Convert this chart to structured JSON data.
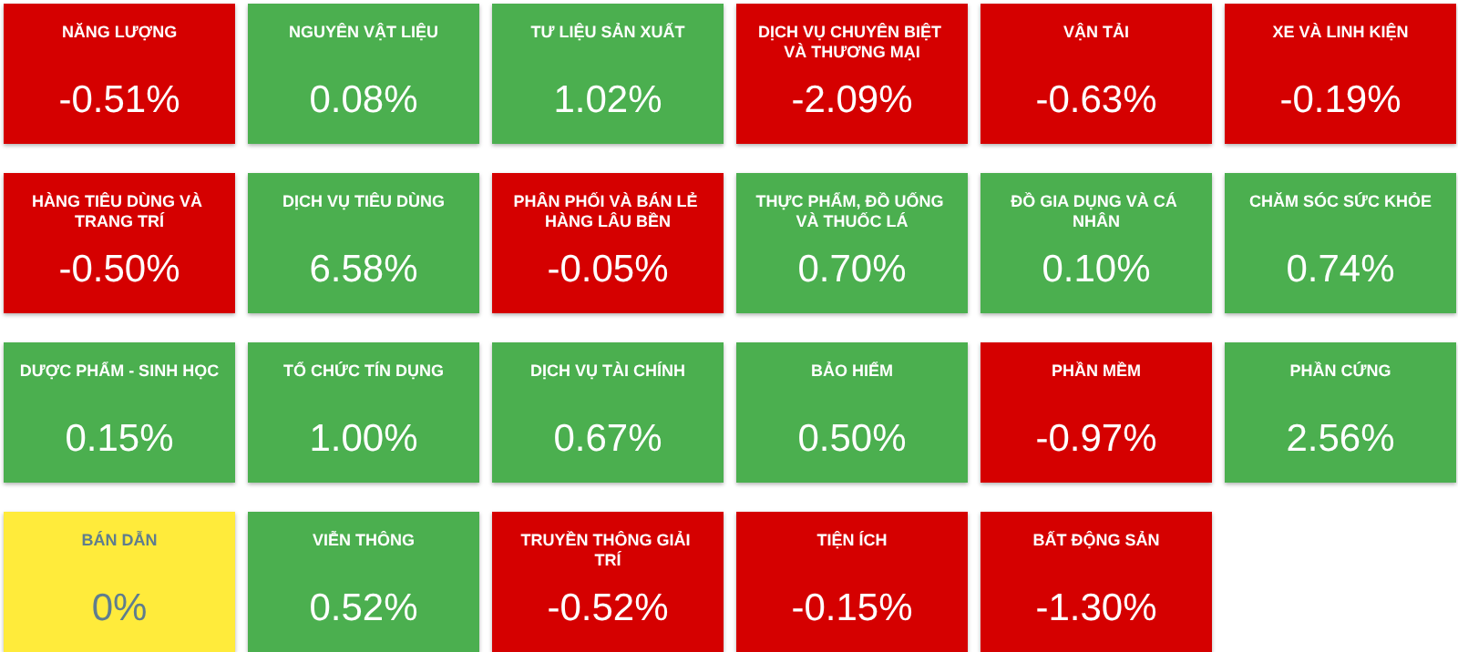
{
  "chart_data": {
    "type": "other",
    "categories": [
      "NĂNG LƯỢNG",
      "NGUYÊN VẬT LIỆU",
      "TƯ LIỆU SẢN XUẤT",
      "DỊCH VỤ CHUYÊN BIỆT VÀ THƯƠNG MẠI",
      "VẬN TẢI",
      "XE VÀ LINH KIỆN",
      "HÀNG TIÊU DÙNG VÀ TRANG TRÍ",
      "DỊCH VỤ TIÊU DÙNG",
      "PHÂN PHỐI VÀ BÁN LẺ HÀNG LÂU BỀN",
      "THỰC PHẨM, ĐỒ UỐNG VÀ THUỐC LÁ",
      "ĐỒ GIA DỤNG VÀ CÁ NHÂN",
      "CHĂM SÓC SỨC KHỎE",
      "DƯỢC PHẨM - SINH HỌC",
      "TỔ CHỨC TÍN DỤNG",
      "DỊCH VỤ TÀI CHÍNH",
      "BẢO HIỂM",
      "PHẦN MỀM",
      "PHẦN CỨNG",
      "BÁN DẪN",
      "VIỄN THÔNG",
      "TRUYỀN THÔNG GIẢI TRÍ",
      "TIỆN ÍCH",
      "BẤT ĐỘNG SẢN"
    ],
    "values": [
      -0.51,
      0.08,
      1.02,
      -2.09,
      -0.63,
      -0.19,
      -0.5,
      6.58,
      -0.05,
      0.7,
      0.1,
      0.74,
      0.15,
      1.0,
      0.67,
      0.5,
      -0.97,
      2.56,
      0,
      0.52,
      -0.52,
      -0.15,
      -1.3
    ],
    "value_labels": [
      "-0.51%",
      "0.08%",
      "1.02%",
      "-2.09%",
      "-0.63%",
      "-0.19%",
      "-0.50%",
      "6.58%",
      "-0.05%",
      "0.70%",
      "0.10%",
      "0.74%",
      "0.15%",
      "1.00%",
      "0.67%",
      "0.50%",
      "-0.97%",
      "2.56%",
      "0%",
      "0.52%",
      "-0.52%",
      "-0.15%",
      "-1.30%"
    ],
    "colors": [
      "#d50000",
      "#4caf50",
      "#4caf50",
      "#d50000",
      "#d50000",
      "#d50000",
      "#d50000",
      "#4caf50",
      "#d50000",
      "#4caf50",
      "#4caf50",
      "#4caf50",
      "#4caf50",
      "#4caf50",
      "#4caf50",
      "#4caf50",
      "#d50000",
      "#4caf50",
      "#ffeb3b",
      "#4caf50",
      "#d50000",
      "#d50000",
      "#d50000"
    ]
  }
}
